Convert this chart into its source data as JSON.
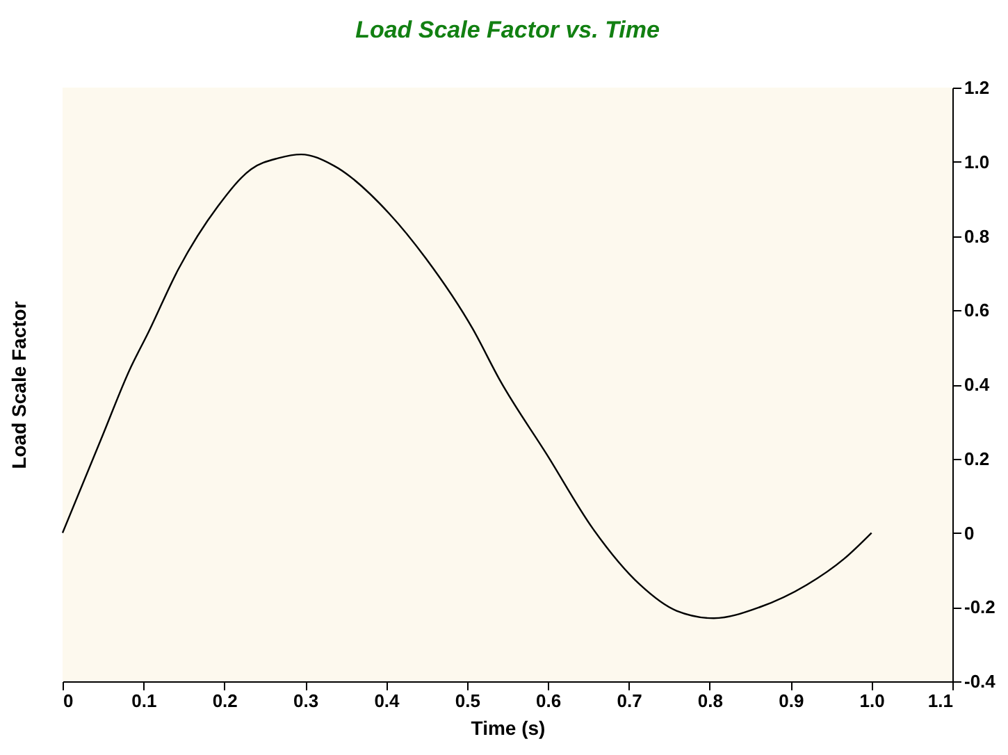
{
  "chart_data": {
    "type": "line",
    "title": "Load Scale Factor vs. Time",
    "xlabel": "Time (s)",
    "ylabel": "Load Scale Factor",
    "x": [
      0,
      0.049,
      0.083,
      0.106,
      0.143,
      0.192,
      0.233,
      0.267,
      0.295,
      0.335,
      0.404,
      0.449,
      0.507,
      0.541,
      0.599,
      0.656,
      0.714,
      0.759,
      0.805,
      0.862,
      0.92,
      0.966,
      1.0
    ],
    "series": [
      {
        "color": "#000000",
        "values": [
          0,
          0.26,
          0.44,
          0.54,
          0.71,
          0.88,
          0.98,
          1.01,
          1.02,
          0.99,
          0.86,
          0.74,
          0.55,
          0.41,
          0.21,
          0.01,
          -0.14,
          -0.21,
          -0.23,
          -0.2,
          -0.14,
          -0.07,
          0
        ]
      }
    ],
    "xlim": [
      0,
      1.1
    ],
    "xticks": [
      0,
      0.1,
      0.2,
      0.3,
      0.4,
      0.5,
      0.6,
      0.7,
      0.8,
      0.9,
      {
        "value": 1,
        "label": "1.0"
      },
      1.1
    ],
    "ylim": [
      -0.4,
      1.2
    ],
    "yticks": [
      -0.4,
      -0.2,
      0,
      0.2,
      0.4,
      0.6,
      0.8,
      {
        "value": 1,
        "label": "1.0"
      },
      1.2
    ],
    "grid": false,
    "legend": false,
    "marker": "none",
    "line_style": "solid"
  }
}
